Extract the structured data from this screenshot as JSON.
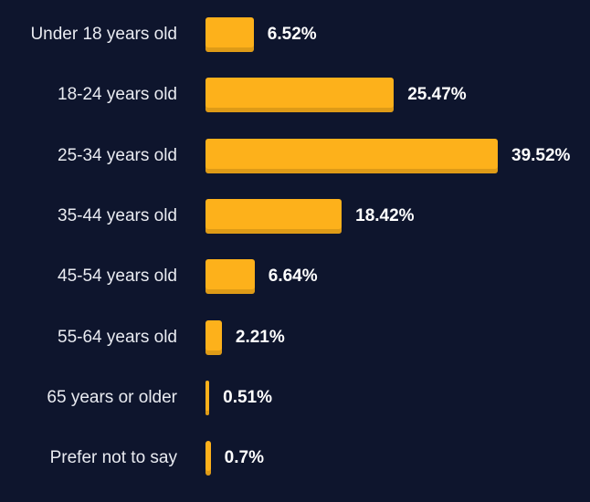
{
  "colors": {
    "background": "#0e152d",
    "bar": "#fdb11b",
    "text": "#e9ebf1",
    "value_text": "#ffffff"
  },
  "chart_data": {
    "type": "bar",
    "orientation": "horizontal",
    "title": "",
    "xlabel": "",
    "ylabel": "",
    "unit": "%",
    "xlim": [
      0,
      39.52
    ],
    "grid": false,
    "categories": [
      "Under 18 years old",
      "18-24 years old",
      "25-34 years old",
      "35-44 years old",
      "45-54 years old",
      "55-64 years old",
      "65 years or older",
      "Prefer not to say"
    ],
    "values": [
      6.52,
      25.47,
      39.52,
      18.42,
      6.64,
      2.21,
      0.51,
      0.7
    ],
    "value_labels": [
      "6.52%",
      "25.47%",
      "39.52%",
      "18.42%",
      "6.64%",
      "2.21%",
      "0.51%",
      "0.7%"
    ]
  }
}
